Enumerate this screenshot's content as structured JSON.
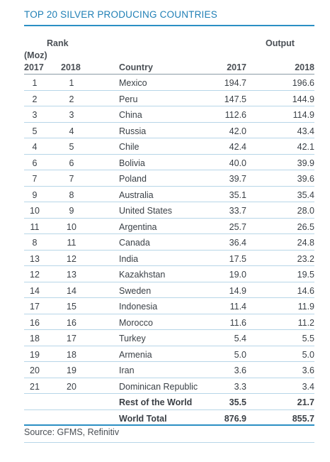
{
  "title": "TOP 20 SILVER PRODUCING COUNTRIES",
  "headers": {
    "rank": "Rank",
    "output": "Output",
    "unit": "(Moz)",
    "rank_2017": "2017",
    "rank_2018": "2018",
    "country": "Country",
    "output_2017": "2017",
    "output_2018": "2018"
  },
  "source": "Source: GFMS, Refinitiv",
  "colors": {
    "accent": "#1f7fb5",
    "row_rule": "#b7d6e8"
  },
  "chart_data": {
    "type": "table",
    "title": "TOP 20 SILVER PRODUCING COUNTRIES",
    "columns": [
      "Rank 2017",
      "Rank 2018",
      "Country",
      "Output 2017",
      "Output 2018"
    ],
    "rows": [
      {
        "r17": "1",
        "r18": "1",
        "country": "Mexico",
        "v17": "194.7",
        "v18": "196.6"
      },
      {
        "r17": "2",
        "r18": "2",
        "country": "Peru",
        "v17": "147.5",
        "v18": "144.9"
      },
      {
        "r17": "3",
        "r18": "3",
        "country": "China",
        "v17": "112.6",
        "v18": "114.9"
      },
      {
        "r17": "5",
        "r18": "4",
        "country": "Russia",
        "v17": "42.0",
        "v18": "43.4"
      },
      {
        "r17": "4",
        "r18": "5",
        "country": "Chile",
        "v17": "42.4",
        "v18": "42.1"
      },
      {
        "r17": "6",
        "r18": "6",
        "country": "Bolivia",
        "v17": "40.0",
        "v18": "39.9"
      },
      {
        "r17": "7",
        "r18": "7",
        "country": "Poland",
        "v17": "39.7",
        "v18": "39.6"
      },
      {
        "r17": "9",
        "r18": "8",
        "country": "Australia",
        "v17": "35.1",
        "v18": "35.4"
      },
      {
        "r17": "10",
        "r18": "9",
        "country": "United States",
        "v17": "33.7",
        "v18": "28.0"
      },
      {
        "r17": "11",
        "r18": "10",
        "country": "Argentina",
        "v17": "25.7",
        "v18": "26.5"
      },
      {
        "r17": "8",
        "r18": "11",
        "country": "Canada",
        "v17": "36.4",
        "v18": "24.8"
      },
      {
        "r17": "13",
        "r18": "12",
        "country": "India",
        "v17": "17.5",
        "v18": "23.2"
      },
      {
        "r17": "12",
        "r18": "13",
        "country": "Kazakhstan",
        "v17": "19.0",
        "v18": "19.5"
      },
      {
        "r17": "14",
        "r18": "14",
        "country": "Sweden",
        "v17": "14.9",
        "v18": "14.6"
      },
      {
        "r17": "17",
        "r18": "15",
        "country": "Indonesia",
        "v17": "11.4",
        "v18": "11.9"
      },
      {
        "r17": "16",
        "r18": "16",
        "country": "Morocco",
        "v17": "11.6",
        "v18": "11.2"
      },
      {
        "r17": "18",
        "r18": "17",
        "country": "Turkey",
        "v17": "5.4",
        "v18": "5.5"
      },
      {
        "r17": "19",
        "r18": "18",
        "country": "Armenia",
        "v17": "5.0",
        "v18": "5.0"
      },
      {
        "r17": "20",
        "r18": "19",
        "country": "Iran",
        "v17": "3.6",
        "v18": "3.6"
      },
      {
        "r17": "21",
        "r18": "20",
        "country": "Dominican Republic",
        "v17": "3.3",
        "v18": "3.4"
      }
    ],
    "rest_of_world": {
      "label": "Rest of the World",
      "v17": "35.5",
      "v18": "21.7"
    },
    "world_total": {
      "label": "World Total",
      "v17": "876.9",
      "v18": "855.7"
    }
  }
}
